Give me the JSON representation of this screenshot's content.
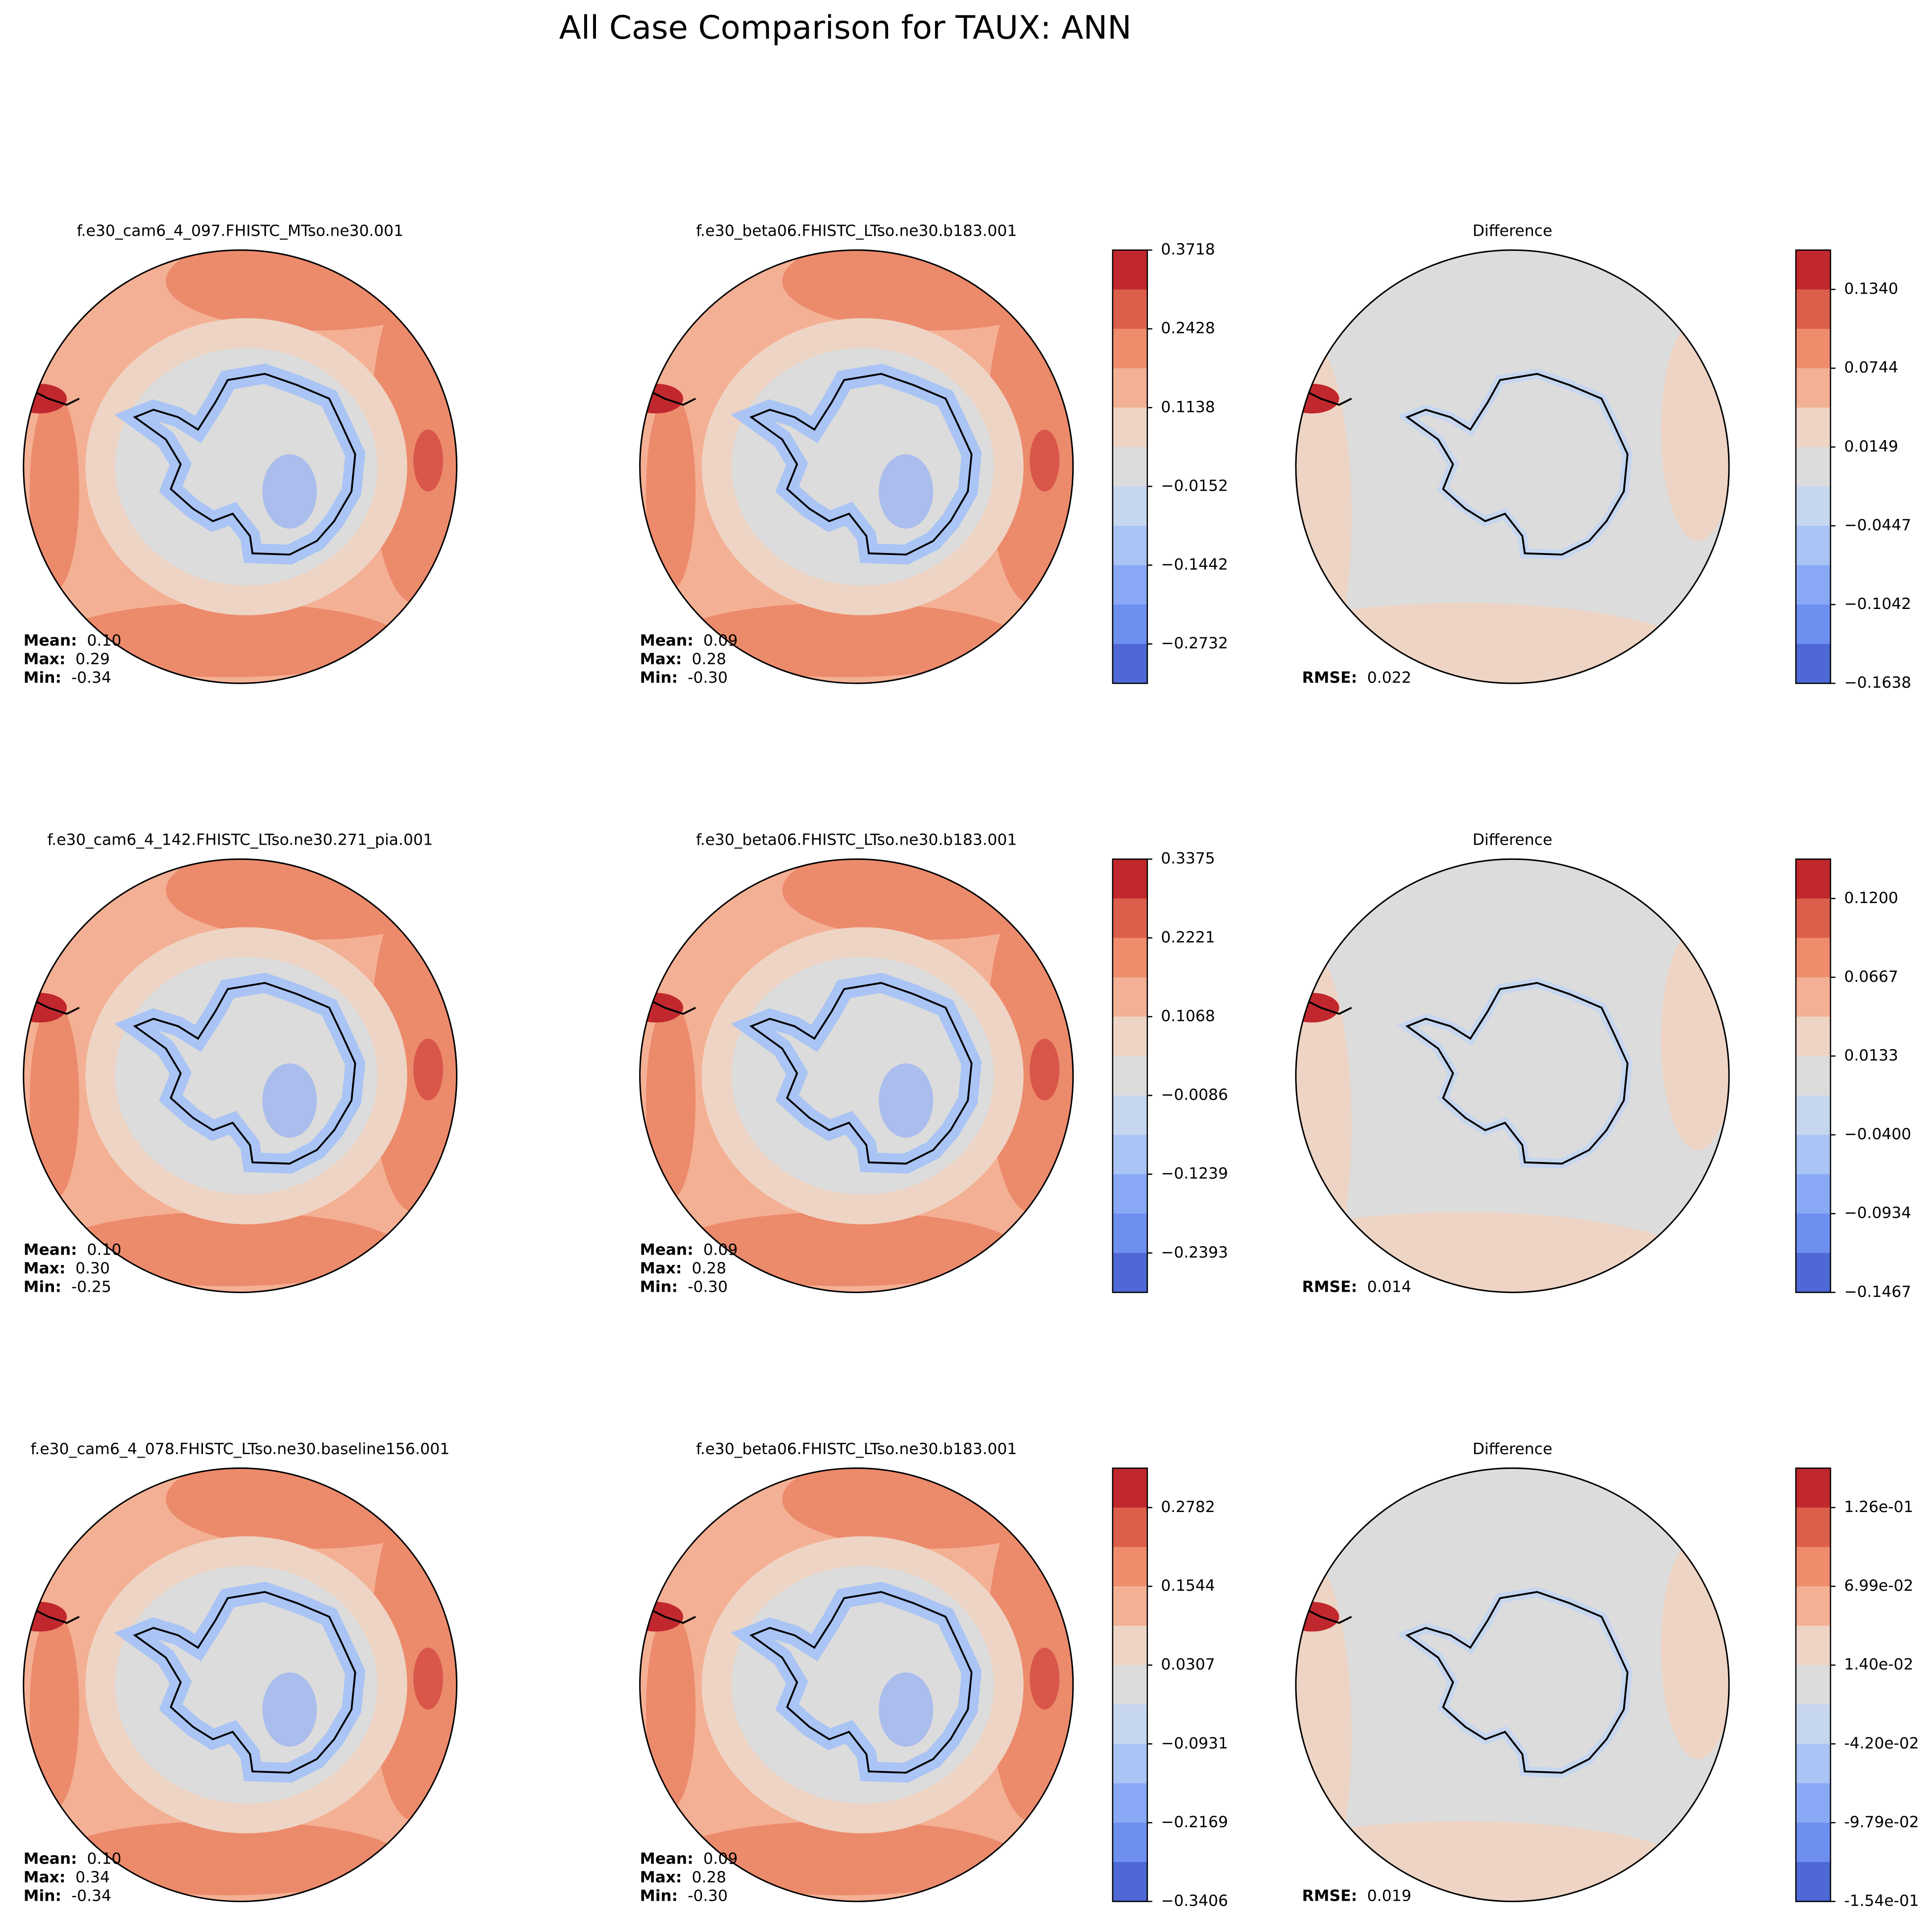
{
  "title": "All Case Comparison for TAUX: ANN",
  "rows": [
    {
      "test": {
        "title": "f.e30_cam6_4_097.FHISTC_MTso.ne30.001",
        "stats": [
          {
            "label": "Mean:",
            "value": "0.10"
          },
          {
            "label": "Max:",
            "value": "0.29"
          },
          {
            "label": "Min:",
            "value": "-0.34"
          }
        ]
      },
      "reference": {
        "title": "f.e30_beta06.FHISTC_LTso.ne30.b183.001",
        "stats": [
          {
            "label": "Mean:",
            "value": "0.09"
          },
          {
            "label": "Max:",
            "value": "0.28"
          },
          {
            "label": "Min:",
            "value": "-0.30"
          }
        ]
      },
      "colorbar": [
        "0.3718",
        "0.2428",
        "0.1138",
        "−0.0152",
        "−0.1442",
        "−0.2732"
      ],
      "difference": {
        "title": "Difference",
        "stats": [
          {
            "label": "RMSE:",
            "value": "0.022"
          }
        ]
      },
      "diff_colorbar": [
        "0.1340",
        "0.0744",
        "0.0149",
        "−0.0447",
        "−0.1042",
        "−0.1638"
      ]
    },
    {
      "test": {
        "title": "f.e30_cam6_4_142.FHISTC_LTso.ne30.271_pia.001",
        "stats": [
          {
            "label": "Mean:",
            "value": "0.10"
          },
          {
            "label": "Max:",
            "value": "0.30"
          },
          {
            "label": "Min:",
            "value": "-0.25"
          }
        ]
      },
      "reference": {
        "title": "f.e30_beta06.FHISTC_LTso.ne30.b183.001",
        "stats": [
          {
            "label": "Mean:",
            "value": "0.09"
          },
          {
            "label": "Max:",
            "value": "0.28"
          },
          {
            "label": "Min:",
            "value": "-0.30"
          }
        ]
      },
      "colorbar": [
        "0.3375",
        "0.2221",
        "0.1068",
        "−0.0086",
        "−0.1239",
        "−0.2393"
      ],
      "difference": {
        "title": "Difference",
        "stats": [
          {
            "label": "RMSE:",
            "value": "0.014"
          }
        ]
      },
      "diff_colorbar": [
        "0.1200",
        "0.0667",
        "0.0133",
        "−0.0400",
        "−0.0934",
        "−0.1467"
      ]
    },
    {
      "test": {
        "title": "f.e30_cam6_4_078.FHISTC_LTso.ne30.baseline156.001",
        "stats": [
          {
            "label": "Mean:",
            "value": "0.10"
          },
          {
            "label": "Max:",
            "value": "0.34"
          },
          {
            "label": "Min:",
            "value": "-0.34"
          }
        ]
      },
      "reference": {
        "title": "f.e30_beta06.FHISTC_LTso.ne30.b183.001",
        "stats": [
          {
            "label": "Mean:",
            "value": "0.09"
          },
          {
            "label": "Max:",
            "value": "0.28"
          },
          {
            "label": "Min:",
            "value": "-0.30"
          }
        ]
      },
      "colorbar": [
        "0.2782",
        "0.1544",
        "0.0307",
        "−0.0931",
        "−0.2169",
        "−0.3406"
      ],
      "difference": {
        "title": "Difference",
        "stats": [
          {
            "label": "RMSE:",
            "value": "0.019"
          }
        ]
      },
      "diff_colorbar": [
        "1.26e-01",
        "6.99e-02",
        "1.40e-02",
        "-4.20e-02",
        "-9.79e-02",
        "-1.54e-01"
      ]
    }
  ]
}
